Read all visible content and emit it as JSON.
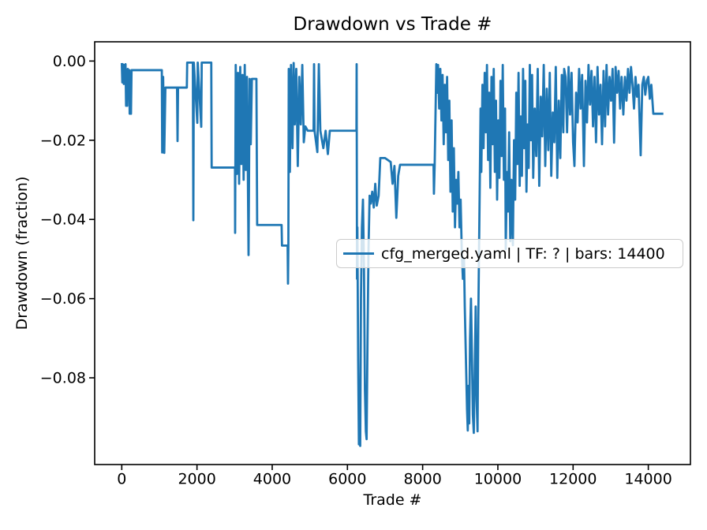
{
  "figure": {
    "kind": "matplotlib-line-plot"
  },
  "chart_data": {
    "type": "line",
    "title": "Drawdown vs Trade #",
    "xlabel": "Trade #",
    "ylabel": "Drawdown (fraction)",
    "grid": false,
    "line_color": "#1f77b4",
    "axis_color": "#000000",
    "xlim": [
      -720,
      15120
    ],
    "ylim": [
      -0.1019,
      0.00486
    ],
    "xticks": {
      "values": [
        0,
        2000,
        4000,
        6000,
        8000,
        10000,
        12000,
        14000
      ],
      "labels": [
        "0",
        "2000",
        "4000",
        "6000",
        "8000",
        "10000",
        "12000",
        "14000"
      ]
    },
    "yticks": {
      "values": [
        0,
        -0.02,
        -0.04,
        -0.06,
        -0.08
      ],
      "labels": [
        "0.00",
        "−0.02",
        "−0.04",
        "−0.06",
        "−0.08"
      ]
    },
    "legend": {
      "position": "center-right-inside",
      "frame_color": "#cbcbcb",
      "entries": [
        {
          "label": "cfg_merged.yaml | TF: ? | bars: 14400",
          "color": "#1f77b4"
        }
      ]
    },
    "series": [
      {
        "name": "cfg_merged.yaml | TF: ? | bars: 14400",
        "points": [
          [
            1,
            -0.0005
          ],
          [
            15,
            -0.0054
          ],
          [
            25,
            -0.0008
          ],
          [
            40,
            -0.001
          ],
          [
            55,
            -0.0058
          ],
          [
            70,
            -0.001
          ],
          [
            85,
            -0.0054
          ],
          [
            100,
            -0.0008
          ],
          [
            115,
            -0.0113
          ],
          [
            130,
            -0.006
          ],
          [
            145,
            -0.0113
          ],
          [
            160,
            -0.002
          ],
          [
            180,
            -0.0055
          ],
          [
            200,
            -0.0023
          ],
          [
            210,
            -0.0133
          ],
          [
            225,
            -0.004
          ],
          [
            245,
            -0.0133
          ],
          [
            260,
            -0.0023
          ],
          [
            1065,
            -0.0023
          ],
          [
            1075,
            -0.0231
          ],
          [
            1100,
            -0.004
          ],
          [
            1130,
            -0.0232
          ],
          [
            1160,
            -0.0067
          ],
          [
            1470,
            -0.0067
          ],
          [
            1483,
            -0.0202
          ],
          [
            1496,
            -0.0067
          ],
          [
            1730,
            -0.0067
          ],
          [
            1740,
            -0.0004
          ],
          [
            1890,
            -0.0004
          ],
          [
            1903,
            -0.0402
          ],
          [
            1916,
            -0.0004
          ],
          [
            2008,
            -0.0156
          ],
          [
            2020,
            -0.0004
          ],
          [
            2113,
            -0.0166
          ],
          [
            2126,
            -0.0004
          ],
          [
            2380,
            -0.0004
          ],
          [
            2390,
            -0.0269
          ],
          [
            3010,
            -0.0269
          ],
          [
            3014,
            -0.0434
          ],
          [
            3030,
            -0.001
          ],
          [
            3060,
            -0.0285
          ],
          [
            3090,
            -0.003
          ],
          [
            3120,
            -0.031
          ],
          [
            3150,
            -0.0015
          ],
          [
            3180,
            -0.026
          ],
          [
            3210,
            -0.0035
          ],
          [
            3240,
            -0.03
          ],
          [
            3270,
            -0.001
          ],
          [
            3300,
            -0.0275
          ],
          [
            3330,
            -0.004
          ],
          [
            3371,
            -0.049
          ],
          [
            3400,
            -0.0045
          ],
          [
            3430,
            -0.021
          ],
          [
            3460,
            -0.0045
          ],
          [
            3580,
            -0.0045
          ],
          [
            3600,
            -0.0414
          ],
          [
            4250,
            -0.0414
          ],
          [
            4260,
            -0.0466
          ],
          [
            4410,
            -0.0466
          ],
          [
            4420,
            -0.0562
          ],
          [
            4430,
            -0.0466
          ],
          [
            4440,
            -0.002
          ],
          [
            4470,
            -0.028
          ],
          [
            4500,
            -0.001
          ],
          [
            4540,
            -0.022
          ],
          [
            4570,
            -0.0005
          ],
          [
            4600,
            -0.016
          ],
          [
            4640,
            -0.002
          ],
          [
            4680,
            -0.0265
          ],
          [
            4720,
            -0.004
          ],
          [
            4760,
            -0.016
          ],
          [
            4800,
            -0.001
          ],
          [
            4840,
            -0.0205
          ],
          [
            4880,
            -0.0165
          ],
          [
            4945,
            -0.0176
          ],
          [
            5100,
            -0.0176
          ],
          [
            5113,
            -0.0008
          ],
          [
            5126,
            -0.0176
          ],
          [
            5200,
            -0.023
          ],
          [
            5240,
            -0.0008
          ],
          [
            5280,
            -0.0176
          ],
          [
            5360,
            -0.022
          ],
          [
            5420,
            -0.0176
          ],
          [
            5480,
            -0.0235
          ],
          [
            5532,
            -0.0176
          ],
          [
            6240,
            -0.0176
          ],
          [
            6245,
            -0.0008
          ],
          [
            6255,
            -0.055
          ],
          [
            6265,
            -0.042
          ],
          [
            6285,
            -0.075
          ],
          [
            6305,
            -0.0968
          ],
          [
            6325,
            -0.088
          ],
          [
            6340,
            -0.0972
          ],
          [
            6360,
            -0.06
          ],
          [
            6385,
            -0.042
          ],
          [
            6413,
            -0.035
          ],
          [
            6440,
            -0.052
          ],
          [
            6465,
            -0.083
          ],
          [
            6490,
            -0.0935
          ],
          [
            6510,
            -0.0955
          ],
          [
            6535,
            -0.07
          ],
          [
            6560,
            -0.048
          ],
          [
            6590,
            -0.034
          ],
          [
            6620,
            -0.036
          ],
          [
            6660,
            -0.033
          ],
          [
            6700,
            -0.037
          ],
          [
            6740,
            -0.031
          ],
          [
            6780,
            -0.0365
          ],
          [
            6830,
            -0.034
          ],
          [
            6874,
            -0.0245
          ],
          [
            7000,
            -0.0245
          ],
          [
            7150,
            -0.0255
          ],
          [
            7200,
            -0.031
          ],
          [
            7250,
            -0.0265
          ],
          [
            7300,
            -0.0396
          ],
          [
            7350,
            -0.029
          ],
          [
            7399,
            -0.0262
          ],
          [
            8290,
            -0.0262
          ],
          [
            8300,
            -0.0335
          ],
          [
            8320,
            -0.0262
          ],
          [
            8364,
            -0.0008
          ],
          [
            8390,
            -0.008
          ],
          [
            8410,
            -0.001
          ],
          [
            8440,
            -0.012
          ],
          [
            8470,
            -0.002
          ],
          [
            8500,
            -0.015
          ],
          [
            8530,
            -0.0035
          ],
          [
            8560,
            -0.021
          ],
          [
            8590,
            -0.006
          ],
          [
            8620,
            -0.018
          ],
          [
            8650,
            -0.004
          ],
          [
            8680,
            -0.025
          ],
          [
            8710,
            -0.01
          ],
          [
            8740,
            -0.033
          ],
          [
            8770,
            -0.015
          ],
          [
            8800,
            -0.038
          ],
          [
            8830,
            -0.022
          ],
          [
            8860,
            -0.042
          ],
          [
            8890,
            -0.03
          ],
          [
            8920,
            -0.036
          ],
          [
            8950,
            -0.028
          ],
          [
            8980,
            -0.042
          ],
          [
            9010,
            -0.035
          ],
          [
            9040,
            -0.048
          ],
          [
            9070,
            -0.055
          ],
          [
            9100,
            -0.05
          ],
          [
            9120,
            -0.062
          ],
          [
            9150,
            -0.075
          ],
          [
            9180,
            -0.088
          ],
          [
            9200,
            -0.0933
          ],
          [
            9220,
            -0.082
          ],
          [
            9240,
            -0.0915
          ],
          [
            9260,
            -0.07
          ],
          [
            9285,
            -0.06
          ],
          [
            9310,
            -0.0735
          ],
          [
            9335,
            -0.0893
          ],
          [
            9360,
            -0.0939
          ],
          [
            9385,
            -0.078
          ],
          [
            9410,
            -0.062
          ],
          [
            9435,
            -0.0855
          ],
          [
            9460,
            -0.0935
          ],
          [
            9480,
            -0.065
          ],
          [
            9497,
            -0.05
          ],
          [
            9520,
            -0.03
          ],
          [
            9540,
            -0.012
          ],
          [
            9560,
            -0.028
          ],
          [
            9590,
            -0.006
          ],
          [
            9620,
            -0.022
          ],
          [
            9650,
            -0.003
          ],
          [
            9680,
            -0.018
          ],
          [
            9710,
            -0.001
          ],
          [
            9740,
            -0.025
          ],
          [
            9770,
            -0.008
          ],
          [
            9800,
            -0.032
          ],
          [
            9830,
            -0.004
          ],
          [
            9860,
            -0.021
          ],
          [
            9890,
            -0.002
          ],
          [
            9920,
            -0.028
          ],
          [
            9950,
            -0.01
          ],
          [
            9980,
            -0.035
          ],
          [
            10010,
            -0.015
          ],
          [
            10040,
            -0.0295
          ],
          [
            10070,
            -0.005
          ],
          [
            10100,
            -0.024
          ],
          [
            10130,
            -0.001
          ],
          [
            10160,
            -0.03
          ],
          [
            10190,
            -0.012
          ],
          [
            10210,
            -0.0475
          ],
          [
            10240,
            -0.028
          ],
          [
            10270,
            -0.038
          ],
          [
            10300,
            -0.018
          ],
          [
            10330,
            -0.0455
          ],
          [
            10360,
            -0.03
          ],
          [
            10399,
            -0.0465
          ],
          [
            10430,
            -0.02
          ],
          [
            10460,
            -0.035
          ],
          [
            10490,
            -0.008
          ],
          [
            10520,
            -0.026
          ],
          [
            10550,
            -0.003
          ],
          [
            10580,
            -0.0315
          ],
          [
            10610,
            -0.014
          ],
          [
            10640,
            -0.029
          ],
          [
            10670,
            -0.002
          ],
          [
            10700,
            -0.022
          ],
          [
            10730,
            -0.005
          ],
          [
            10760,
            -0.033
          ],
          [
            10790,
            -0.016
          ],
          [
            10820,
            -0.027
          ],
          [
            10850,
            -0.001
          ],
          [
            10880,
            -0.02
          ],
          [
            10910,
            -0.0035
          ],
          [
            10940,
            -0.0295
          ],
          [
            10980,
            -0.012
          ],
          [
            11020,
            -0.024
          ],
          [
            11060,
            -0.002
          ],
          [
            11100,
            -0.0315
          ],
          [
            11140,
            -0.009
          ],
          [
            11180,
            -0.019
          ],
          [
            11220,
            -0.001
          ],
          [
            11260,
            -0.0265
          ],
          [
            11300,
            -0.007
          ],
          [
            11340,
            -0.0225
          ],
          [
            11380,
            -0.003
          ],
          [
            11420,
            -0.029
          ],
          [
            11460,
            -0.013
          ],
          [
            11500,
            -0.0205
          ],
          [
            11540,
            -0.0015
          ],
          [
            11580,
            -0.0295
          ],
          [
            11620,
            -0.01
          ],
          [
            11660,
            -0.0245
          ],
          [
            11700,
            -0.0035
          ],
          [
            11740,
            -0.018
          ],
          [
            11763,
            -0.002
          ],
          [
            11800,
            -0.004
          ],
          [
            11840,
            -0.018
          ],
          [
            11880,
            -0.0015
          ],
          [
            11920,
            -0.0135
          ],
          [
            11960,
            -0.003
          ],
          [
            12000,
            -0.0205
          ],
          [
            12036,
            -0.0265
          ],
          [
            12080,
            -0.008
          ],
          [
            12120,
            -0.0155
          ],
          [
            12160,
            -0.002
          ],
          [
            12200,
            -0.012
          ],
          [
            12240,
            -0.0035
          ],
          [
            12288,
            -0.0265
          ],
          [
            12330,
            -0.005
          ],
          [
            12370,
            -0.0155
          ],
          [
            12410,
            -0.001
          ],
          [
            12450,
            -0.011
          ],
          [
            12490,
            -0.0025
          ],
          [
            12530,
            -0.0165
          ],
          [
            12570,
            -0.004
          ],
          [
            12610,
            -0.0205
          ],
          [
            12650,
            -0.0015
          ],
          [
            12690,
            -0.0135
          ],
          [
            12730,
            -0.006
          ],
          [
            12770,
            -0.021
          ],
          [
            12810,
            -0.0025
          ],
          [
            12850,
            -0.0165
          ],
          [
            12890,
            -0.001
          ],
          [
            12930,
            -0.0135
          ],
          [
            12970,
            -0.004
          ],
          [
            13010,
            -0.01
          ],
          [
            13050,
            -0.002
          ],
          [
            13090,
            -0.0206
          ],
          [
            13130,
            -0.0015
          ],
          [
            13170,
            -0.008
          ],
          [
            13210,
            -0.0025
          ],
          [
            13250,
            -0.012
          ],
          [
            13290,
            -0.004
          ],
          [
            13336,
            -0.0135
          ],
          [
            13380,
            -0.004
          ],
          [
            13420,
            -0.01
          ],
          [
            13460,
            -0.002
          ],
          [
            13500,
            -0.008
          ],
          [
            13540,
            -0.0015
          ],
          [
            13580,
            -0.006
          ],
          [
            13620,
            -0.012
          ],
          [
            13660,
            -0.004
          ],
          [
            13700,
            -0.009
          ],
          [
            13740,
            -0.006
          ],
          [
            13797,
            -0.0238
          ],
          [
            13840,
            -0.006
          ],
          [
            13880,
            -0.004
          ],
          [
            13920,
            -0.0085
          ],
          [
            13960,
            -0.005
          ],
          [
            14000,
            -0.004
          ],
          [
            14040,
            -0.0095
          ],
          [
            14080,
            -0.006
          ],
          [
            14133,
            -0.0133
          ],
          [
            14400,
            -0.0133
          ]
        ]
      }
    ]
  }
}
